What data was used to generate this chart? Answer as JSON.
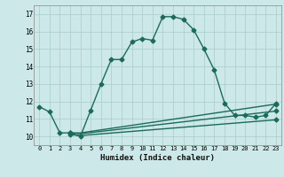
{
  "title": "",
  "xlabel": "Humidex (Indice chaleur)",
  "background_color": "#cce8e8",
  "grid_color": "#aacccc",
  "line_color": "#1a6b5a",
  "xlim": [
    -0.5,
    23.5
  ],
  "ylim": [
    9.5,
    17.5
  ],
  "yticks": [
    10,
    11,
    12,
    13,
    14,
    15,
    16,
    17
  ],
  "xticks": [
    0,
    1,
    2,
    3,
    4,
    5,
    6,
    7,
    8,
    9,
    10,
    11,
    12,
    13,
    14,
    15,
    16,
    17,
    18,
    19,
    20,
    21,
    22,
    23
  ],
  "main_line_x": [
    0,
    1,
    2,
    3,
    4,
    5,
    6,
    7,
    8,
    9,
    10,
    11,
    12,
    13,
    14,
    15,
    16,
    17,
    18,
    19,
    20,
    21,
    22,
    23
  ],
  "main_line_y": [
    11.7,
    11.4,
    10.2,
    10.2,
    10.0,
    11.5,
    13.0,
    14.4,
    14.4,
    15.4,
    15.6,
    15.5,
    16.85,
    16.85,
    16.7,
    16.1,
    15.0,
    13.8,
    11.9,
    11.2,
    11.2,
    11.1,
    11.2,
    11.9
  ],
  "flat_line1_x": [
    3,
    4,
    23
  ],
  "flat_line1_y": [
    10.2,
    10.2,
    11.85
  ],
  "flat_line2_x": [
    3,
    4,
    23
  ],
  "flat_line2_y": [
    10.2,
    10.15,
    11.45
  ],
  "flat_line3_x": [
    3,
    4,
    23
  ],
  "flat_line3_y": [
    10.1,
    10.05,
    10.95
  ],
  "marker": "D",
  "marker_size": 2.5,
  "line_width": 1.0
}
